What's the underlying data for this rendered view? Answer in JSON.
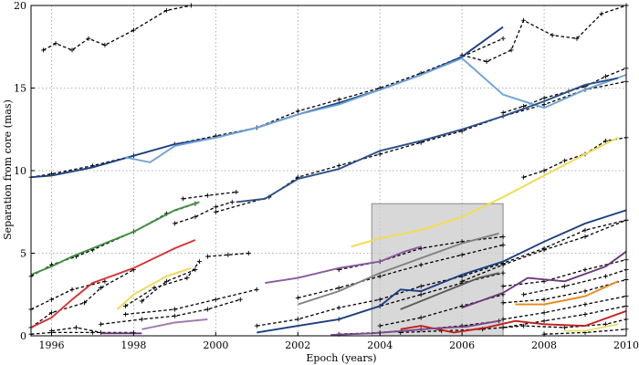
{
  "chart_data": {
    "type": "line",
    "title": "",
    "xlabel": "Epoch (years)",
    "ylabel": "Separation from core (mas)",
    "xlim": [
      1995.5,
      2010
    ],
    "ylim": [
      0,
      20
    ],
    "xticks": [
      "1996",
      "1998",
      "2000",
      "2002",
      "2004",
      "2006",
      "2008",
      "2010"
    ],
    "yticks": [
      "0",
      "5",
      "10",
      "15",
      "20"
    ],
    "grid": true,
    "legend": "none",
    "highlight_region": {
      "x": [
        2003.8,
        2007.0
      ],
      "y": [
        0,
        8
      ]
    },
    "model_color": "#000000",
    "series": [
      {
        "color": "#1a3f7f",
        "x": [
          1995.5,
          1996,
          1997,
          1998,
          1999,
          2000,
          2001,
          2002,
          2003,
          2004,
          2005,
          2006,
          2007
        ],
        "y": [
          9.6,
          9.7,
          10.2,
          10.9,
          11.6,
          12.0,
          12.6,
          13.4,
          14.1,
          14.9,
          15.8,
          16.9,
          18.7
        ]
      },
      {
        "color": "#6ea3d7",
        "x": [
          1997.8,
          1998.4,
          1999,
          2000,
          2001,
          2002,
          2003,
          2004,
          2005,
          2006,
          2007,
          2008,
          2009,
          2010
        ],
        "y": [
          10.8,
          10.5,
          11.5,
          12.0,
          12.6,
          13.4,
          14.0,
          14.9,
          15.8,
          16.8,
          14.6,
          13.8,
          14.9,
          15.8
        ]
      },
      {
        "color": "#2b4f8a",
        "x": [
          2000.5,
          2001.2,
          2002,
          2003,
          2004,
          2005,
          2006,
          2007,
          2008,
          2009,
          2009.8
        ],
        "y": [
          8.1,
          8.3,
          9.5,
          10.1,
          11.2,
          11.8,
          12.5,
          13.3,
          14.2,
          15.2,
          15.6
        ]
      },
      {
        "color": "#f2dc4d",
        "x": [
          2003.3,
          2004,
          2005,
          2006,
          2007,
          2008,
          2009,
          2009.8
        ],
        "y": [
          5.4,
          5.9,
          6.4,
          7.2,
          8.4,
          9.7,
          11.0,
          12.0
        ]
      },
      {
        "color": "#3f8f3f",
        "x": [
          1995.5,
          1996,
          1996.5,
          1997,
          1998,
          1999,
          1999.6
        ],
        "y": [
          3.7,
          4.2,
          4.8,
          5.3,
          6.3,
          7.6,
          8.1
        ]
      },
      {
        "color": "#d63232",
        "x": [
          1995.5,
          1996,
          1996.5,
          1997,
          1998,
          1999,
          1999.5
        ],
        "y": [
          0.5,
          1.1,
          2.2,
          3.2,
          4.1,
          5.3,
          5.8
        ]
      },
      {
        "color": "#f2d855",
        "x": [
          1997.6,
          1998,
          1998.8,
          1999.4
        ],
        "y": [
          1.6,
          2.5,
          3.6,
          4.1
        ]
      },
      {
        "color": "#8a5aa0",
        "x": [
          2001.2,
          2002,
          2003,
          2004,
          2004.6,
          2005
        ],
        "y": [
          3.2,
          3.5,
          4.1,
          4.5,
          5.1,
          5.4
        ]
      },
      {
        "color": "#808080",
        "x": [
          2002,
          2003,
          2004,
          2005,
          2006,
          2006.9
        ],
        "y": [
          1.9,
          2.7,
          3.8,
          4.7,
          5.6,
          6.2
        ]
      },
      {
        "color": "#1a3f7f",
        "x": [
          2001,
          2002,
          2003,
          2004,
          2004.5,
          2005,
          2006,
          2007,
          2008,
          2009,
          2010
        ],
        "y": [
          0.2,
          0.6,
          1.0,
          1.8,
          2.8,
          2.7,
          3.7,
          4.5,
          5.7,
          6.8,
          7.6
        ]
      },
      {
        "color": "#5a5a5a",
        "x": [
          2004.5,
          2005.5,
          2006.4,
          2006.9
        ],
        "y": [
          1.6,
          2.6,
          3.5,
          3.8
        ]
      },
      {
        "color": "#6b3a7a",
        "x": [
          2006,
          2007,
          2007.6,
          2008.5,
          2009.5,
          2010
        ],
        "y": [
          1.7,
          2.6,
          3.5,
          3.3,
          4.2,
          5.1
        ]
      },
      {
        "color": "#e8891a",
        "x": [
          2007.3,
          2008,
          2009,
          2009.8
        ],
        "y": [
          1.9,
          1.9,
          2.4,
          3.3
        ]
      },
      {
        "color": "#c21d1d",
        "x": [
          2004.5,
          2005,
          2005.8,
          2006.6,
          2007.3,
          2008,
          2009,
          2010
        ],
        "y": [
          0.4,
          0.6,
          0.2,
          0.5,
          0.9,
          0.7,
          0.6,
          1.5
        ]
      },
      {
        "color": "#7a4a8a",
        "x": [
          2002.8,
          2003.8,
          2004.6,
          2005.3,
          2006.1,
          2006.9
        ],
        "y": [
          0.05,
          0.15,
          0.3,
          0.45,
          0.55,
          0.9
        ]
      },
      {
        "color": "#a07ab0",
        "x": [
          1998.2,
          1999,
          1999.8
        ],
        "y": [
          0.4,
          0.8,
          1.0
        ]
      },
      {
        "color": "#6b3a7a",
        "x": [
          1997.2,
          1998.2
        ],
        "y": [
          0.15,
          0.15
        ]
      },
      {
        "color": "#e8e070",
        "x": [
          2008.5,
          2009,
          2009.8
        ],
        "y": [
          0.3,
          0.3,
          0.7
        ]
      }
    ],
    "models": [
      {
        "x": [
          1995.8,
          1996.1,
          1996.5,
          1996.9,
          1997.3,
          1998,
          1998.8,
          1999.4
        ],
        "y": [
          17.3,
          17.7,
          17.3,
          18.0,
          17.6,
          18.5,
          19.7,
          20.0
        ]
      },
      {
        "x": [
          2006,
          2006.6,
          2007.2,
          2007.5,
          2008.2,
          2008.8,
          2009.4,
          2010
        ],
        "y": [
          17.0,
          16.6,
          17.3,
          19.1,
          18.2,
          18.0,
          19.5,
          20.0
        ]
      },
      {
        "x": [
          1995.5,
          1996,
          1997,
          1998,
          1999,
          2000,
          2001,
          2002,
          2003,
          2004,
          2005,
          2006,
          2007
        ],
        "y": [
          9.6,
          9.8,
          10.3,
          10.9,
          11.6,
          12.1,
          12.6,
          13.6,
          14.3,
          15.0,
          15.9,
          16.9,
          18.0
        ]
      },
      {
        "x": [
          2007,
          2007.5,
          2008,
          2008.6,
          2009,
          2009.5,
          2010
        ],
        "y": [
          13.5,
          13.9,
          14.4,
          14.8,
          15.1,
          15.7,
          16.2
        ]
      },
      {
        "x": [
          2000,
          2001.3,
          2002,
          2003,
          2004,
          2005,
          2006,
          2007,
          2008,
          2009,
          2010
        ],
        "y": [
          7.5,
          8.4,
          9.6,
          10.3,
          11.0,
          11.7,
          12.4,
          13.3,
          14.0,
          14.9,
          15.4
        ]
      },
      {
        "x": [
          2007.5,
          2008,
          2008.5,
          2009,
          2009.5,
          2010
        ],
        "y": [
          9.6,
          10.0,
          10.6,
          11.0,
          11.8,
          12.0
        ]
      },
      {
        "x": [
          1995.5,
          1996,
          1996.6,
          1997,
          1998,
          1998.8,
          1999.5
        ],
        "y": [
          3.6,
          4.3,
          4.8,
          5.2,
          6.3,
          7.4,
          8.0
        ]
      },
      {
        "x": [
          1999.2,
          1999.8,
          2000.5
        ],
        "y": [
          8.3,
          8.5,
          8.7
        ]
      },
      {
        "x": [
          1999,
          1999.5,
          2000,
          2000.4
        ],
        "y": [
          6.8,
          7.2,
          7.8,
          8.1
        ]
      },
      {
        "x": [
          1995.5,
          1996,
          1996.5,
          1997.3
        ],
        "y": [
          1.6,
          2.2,
          2.8,
          3.3
        ]
      },
      {
        "x": [
          1995.5,
          1996,
          1996.8,
          1997.2,
          1998
        ],
        "y": [
          0.5,
          1.4,
          2.0,
          2.9,
          4.0
        ]
      },
      {
        "x": [
          1999.8,
          2000.3,
          2000.8
        ],
        "y": [
          4.8,
          4.9,
          5.0
        ]
      },
      {
        "x": [
          1998.2,
          1998.8,
          1999.5
        ],
        "y": [
          2.1,
          3.3,
          4.0
        ]
      },
      {
        "x": [
          1997.8,
          1998.5,
          1999.3,
          1999.6
        ],
        "y": [
          1.8,
          2.9,
          3.5,
          4.5
        ]
      },
      {
        "x": [
          1997.2,
          1998.2,
          1999,
          1999.8,
          2000.6
        ],
        "y": [
          0.7,
          1.0,
          1.2,
          1.6,
          2.2
        ]
      },
      {
        "x": [
          1997.8,
          1999,
          2000,
          2001
        ],
        "y": [
          1.3,
          1.6,
          2.2,
          2.8
        ]
      },
      {
        "x": [
          2001,
          2002,
          2003,
          2004,
          2005,
          2006,
          2007,
          2008,
          2009,
          2010
        ],
        "y": [
          0.6,
          1.0,
          1.7,
          2.2,
          3.0,
          3.6,
          4.4,
          5.3,
          6.4,
          7.0
        ]
      },
      {
        "x": [
          2002,
          2003,
          2004,
          2005,
          2006,
          2007
        ],
        "y": [
          2.3,
          2.9,
          3.6,
          4.3,
          4.9,
          5.5
        ]
      },
      {
        "x": [
          2003,
          2004,
          2005,
          2006,
          2007
        ],
        "y": [
          4.0,
          4.5,
          5.3,
          5.7,
          6.0
        ]
      },
      {
        "x": [
          2006,
          2007,
          2008,
          2009,
          2010
        ],
        "y": [
          3.3,
          4.3,
          5.2,
          6.0,
          7.0
        ]
      },
      {
        "x": [
          2003,
          2004,
          2005,
          2006,
          2007
        ],
        "y": [
          1.0,
          1.8,
          2.5,
          3.2,
          3.8
        ]
      },
      {
        "x": [
          2004,
          2005,
          2006,
          2007
        ],
        "y": [
          0.6,
          1.1,
          1.8,
          2.5
        ]
      },
      {
        "x": [
          2007,
          2008,
          2009,
          2010
        ],
        "y": [
          3.0,
          3.3,
          4.0,
          4.6
        ]
      },
      {
        "x": [
          2007.5,
          2008.5,
          2009.5,
          2010
        ],
        "y": [
          2.5,
          3.0,
          3.6,
          4.0
        ]
      },
      {
        "x": [
          2007,
          2008,
          2009,
          2010
        ],
        "y": [
          2.0,
          2.2,
          2.7,
          3.4
        ]
      },
      {
        "x": [
          2007,
          2008,
          2009,
          2010
        ],
        "y": [
          1.0,
          1.4,
          1.9,
          2.4
        ]
      },
      {
        "x": [
          2007,
          2008,
          2009,
          2010
        ],
        "y": [
          0.5,
          0.9,
          1.3,
          1.8
        ]
      },
      {
        "x": [
          2004.5,
          2005.5,
          2006.5,
          2007.5,
          2008.5,
          2009.5,
          2010
        ],
        "y": [
          0.2,
          0.3,
          0.4,
          0.6,
          0.5,
          0.7,
          1.0
        ]
      },
      {
        "x": [
          2008,
          2009,
          2010
        ],
        "y": [
          0.1,
          0.2,
          0.4
        ]
      },
      {
        "x": [
          2003,
          2004,
          2005,
          2006,
          2006.9
        ],
        "y": [
          0.1,
          0.2,
          0.4,
          0.6,
          0.9
        ]
      },
      {
        "x": [
          1995.5,
          1996,
          1997,
          1998
        ],
        "y": [
          0.1,
          0.2,
          0.2,
          0.2
        ]
      },
      {
        "x": [
          1996,
          1996.6,
          1997.2
        ],
        "y": [
          0.3,
          0.5,
          0.2
        ]
      }
    ]
  }
}
